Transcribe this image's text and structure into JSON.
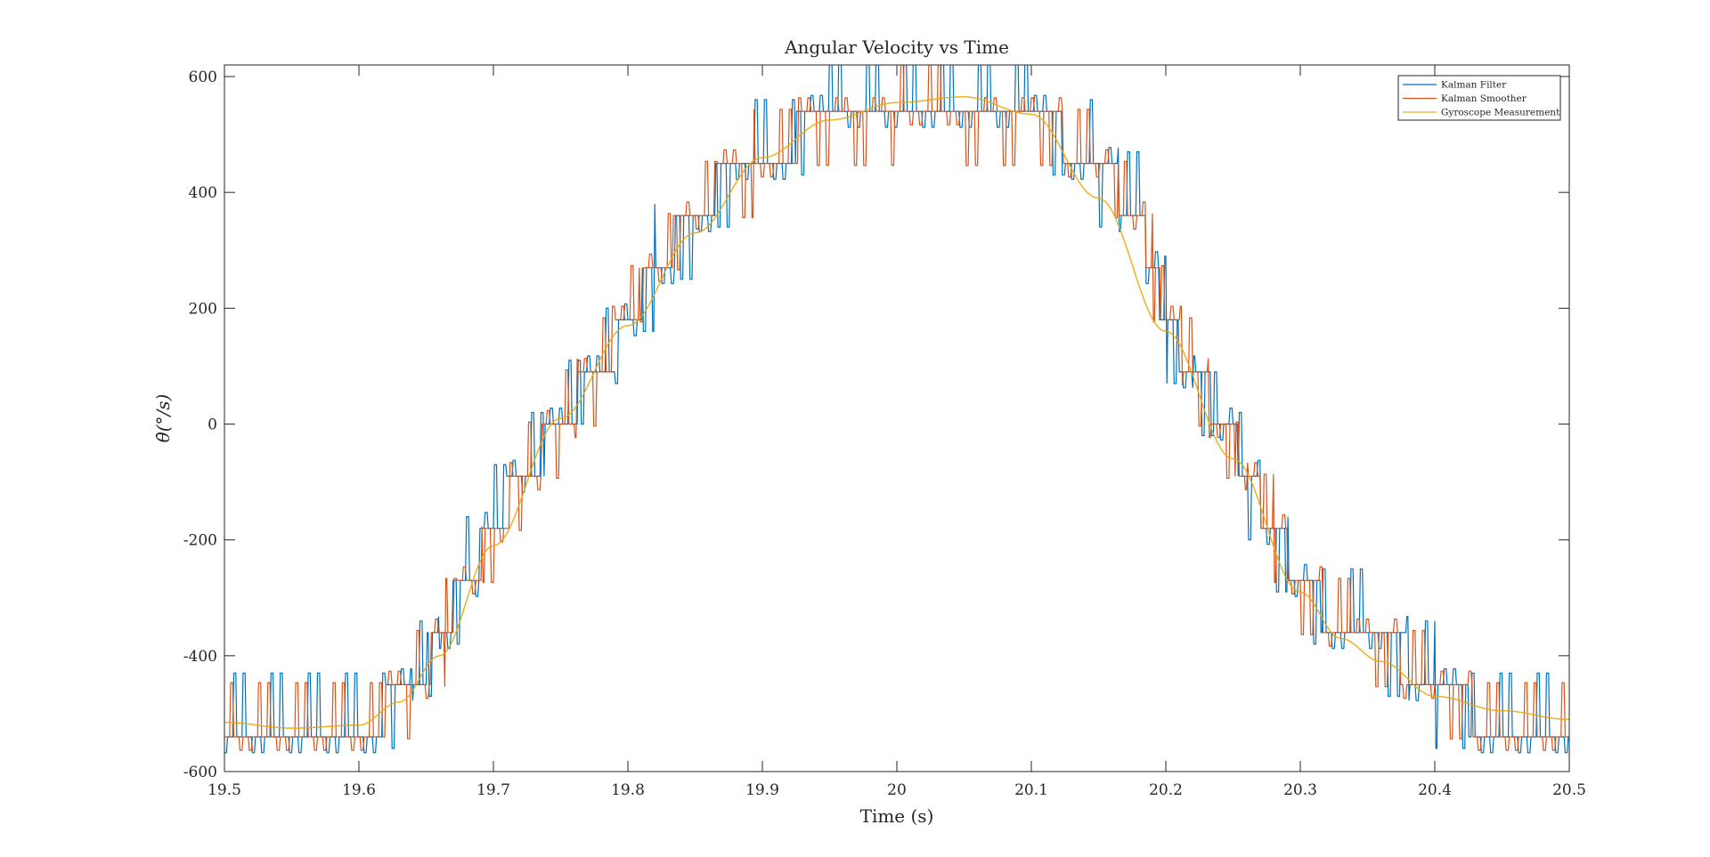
{
  "chart_data": {
    "type": "line",
    "title": "Angular Velocity vs Time",
    "xlabel": "Time (s)",
    "ylabel": "θ̇(°/s)",
    "xlim": [
      19.5,
      20.5
    ],
    "ylim": [
      -600,
      620
    ],
    "x_ticks": [
      19.5,
      19.6,
      19.7,
      19.8,
      19.9,
      20,
      20.1,
      20.2,
      20.3,
      20.4,
      20.5
    ],
    "x_tick_labels": [
      "19.5",
      "19.6",
      "19.7",
      "19.8",
      "19.9",
      "20",
      "20.1",
      "20.2",
      "20.3",
      "20.4",
      "20.5"
    ],
    "y_ticks": [
      -600,
      -400,
      -200,
      0,
      200,
      400,
      600
    ],
    "y_tick_labels": [
      "-600",
      "-400",
      "-200",
      "0",
      "200",
      "400",
      "600"
    ],
    "grid": false,
    "legend_position": "top-right",
    "series": [
      {
        "name": "Kalman Filter",
        "color": "#0072BD",
        "quantization_step_deg_s": 90,
        "spike_amplitude_deg_s": 110,
        "x": [
          19.5,
          19.6,
          19.64,
          19.66,
          19.68,
          19.7,
          19.72,
          19.74,
          19.76,
          19.78,
          19.8,
          19.82,
          19.85,
          19.88,
          19.9,
          19.95,
          20.0,
          20.05,
          20.1,
          20.15,
          20.18,
          20.2,
          20.22,
          20.24,
          20.26,
          20.28,
          20.3,
          20.33,
          20.36,
          20.4,
          20.45,
          20.5
        ],
        "y": [
          -540,
          -540,
          -450,
          -360,
          -270,
          -180,
          -90,
          -40,
          20,
          90,
          180,
          270,
          360,
          450,
          450,
          540,
          540,
          540,
          540,
          450,
          360,
          180,
          90,
          40,
          -90,
          -180,
          -270,
          -360,
          -360,
          -450,
          -540,
          -540
        ]
      },
      {
        "name": "Kalman Smoother",
        "color": "#D95319",
        "x": [
          19.5,
          19.6,
          19.64,
          19.66,
          19.68,
          19.7,
          19.72,
          19.74,
          19.76,
          19.78,
          19.8,
          19.82,
          19.85,
          19.88,
          19.9,
          19.95,
          20.0,
          20.05,
          20.1,
          20.15,
          20.18,
          20.2,
          20.22,
          20.24,
          20.26,
          20.28,
          20.3,
          20.33,
          20.36,
          20.4,
          20.45,
          20.5
        ],
        "y": [
          -530,
          -530,
          -460,
          -380,
          -280,
          -190,
          -100,
          -30,
          40,
          100,
          190,
          280,
          360,
          440,
          455,
          530,
          540,
          540,
          535,
          450,
          360,
          190,
          100,
          10,
          -90,
          -180,
          -270,
          -350,
          -380,
          -450,
          -530,
          -530
        ]
      },
      {
        "name": "Gyroscope Measurement",
        "color": "#EDB120",
        "x": [
          19.5,
          19.55,
          19.6,
          19.63,
          19.66,
          19.7,
          19.75,
          19.8,
          19.85,
          19.9,
          19.95,
          20.0,
          20.05,
          20.1,
          20.15,
          20.2,
          20.25,
          20.3,
          20.33,
          20.36,
          20.4,
          20.45,
          20.5
        ],
        "y": [
          -515,
          -525,
          -520,
          -480,
          -400,
          -210,
          10,
          170,
          330,
          460,
          525,
          555,
          565,
          535,
          390,
          160,
          -60,
          -290,
          -370,
          -410,
          -470,
          -495,
          -510
        ]
      }
    ]
  }
}
